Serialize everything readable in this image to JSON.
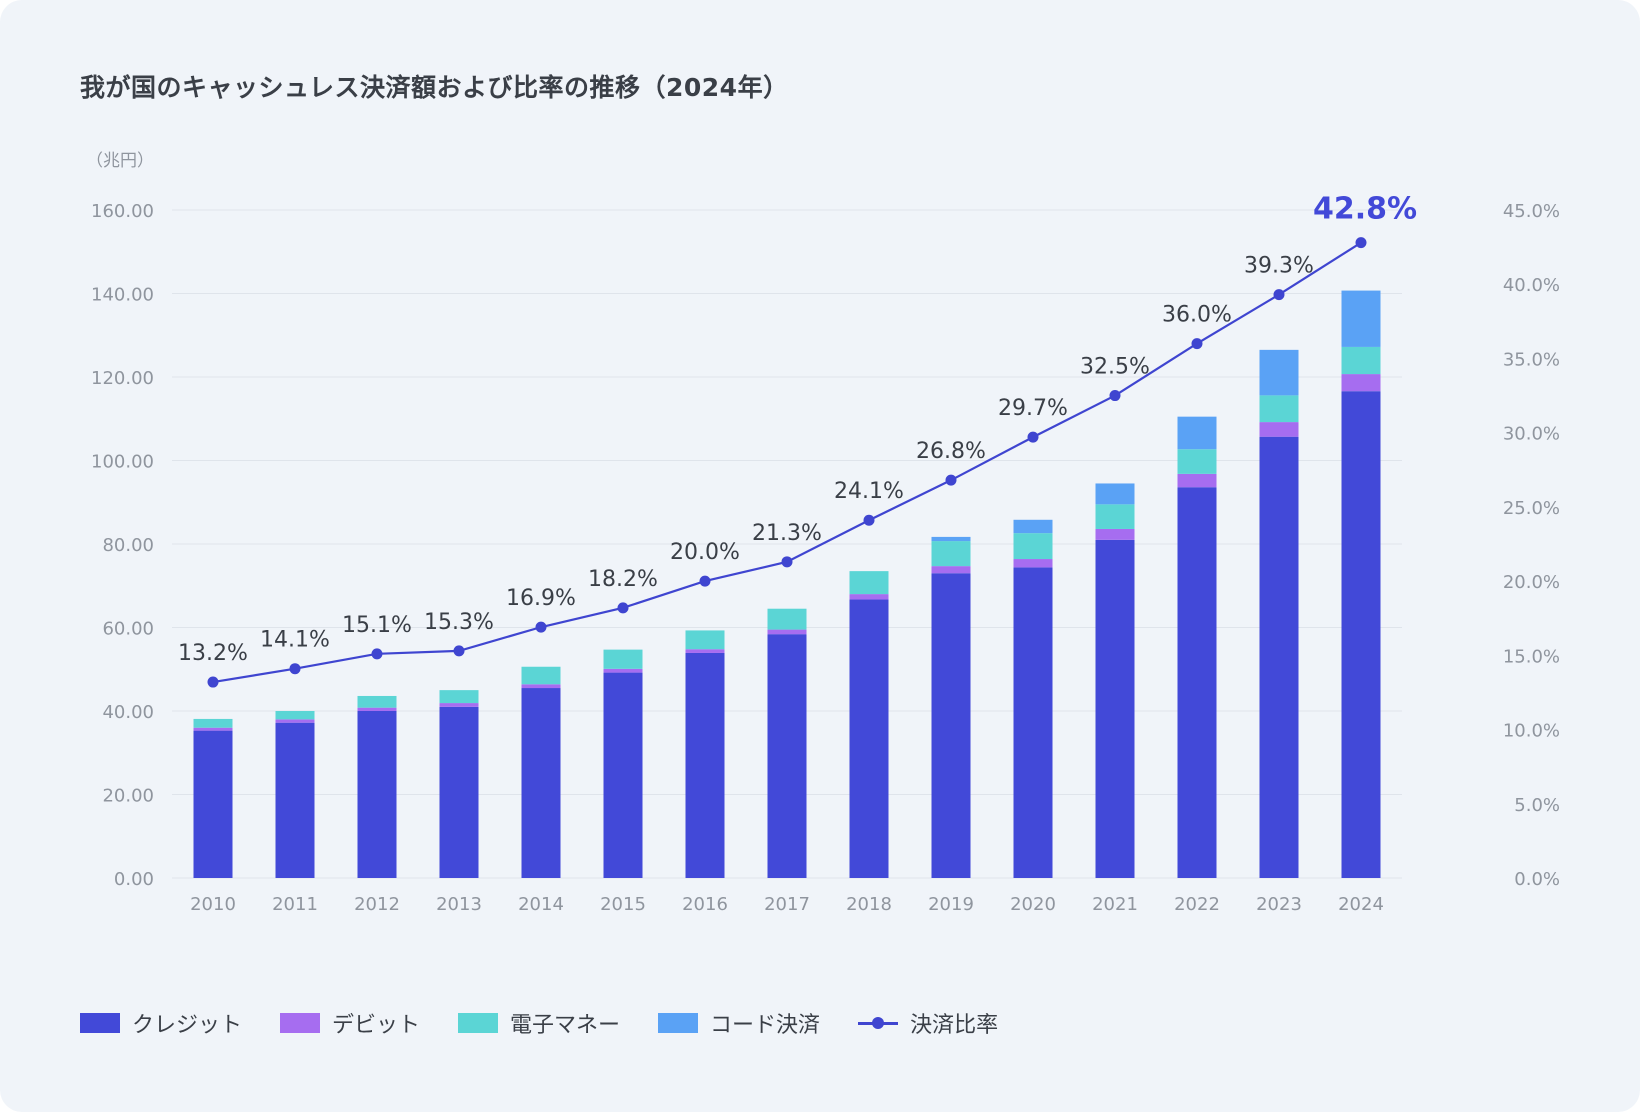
{
  "title": "我が国のキャッシュレス決済額および比率の推移（2024年）",
  "chart_data": {
    "type": "bar",
    "stacked": true,
    "title": "我が国のキャッシュレス決済額および比率の推移（2024年）",
    "y_unit_label": "（兆円）",
    "categories": [
      "2010",
      "2011",
      "2012",
      "2013",
      "2014",
      "2015",
      "2016",
      "2017",
      "2018",
      "2019",
      "2020",
      "2021",
      "2022",
      "2023",
      "2024"
    ],
    "ylim": [
      0,
      160
    ],
    "y_ticks": [
      "0.00",
      "20.00",
      "40.00",
      "60.00",
      "80.00",
      "100.00",
      "120.00",
      "140.00",
      "160.00"
    ],
    "y2lim": [
      0,
      45
    ],
    "y2_ticks": [
      "0.0%",
      "5.0%",
      "10.0%",
      "15.0%",
      "20.0%",
      "25.0%",
      "30.0%",
      "35.0%",
      "40.0%",
      "45.0%"
    ],
    "grid": true,
    "legend_position": "bottom-left",
    "series": [
      {
        "name": "クレジット",
        "color": "#4249d8",
        "values": [
          35.3,
          37.2,
          40.0,
          41.0,
          45.5,
          49.2,
          53.9,
          58.4,
          66.7,
          73.0,
          74.4,
          81.0,
          93.6,
          105.7,
          116.6
        ]
      },
      {
        "name": "デビット",
        "color": "#a66df0",
        "values": [
          0.7,
          0.8,
          0.8,
          0.9,
          0.9,
          0.9,
          0.9,
          1.1,
          1.3,
          1.7,
          2.0,
          2.6,
          3.2,
          3.5,
          4.1
        ]
      },
      {
        "name": "電子マネー",
        "color": "#5bd5d5",
        "values": [
          2.1,
          2.0,
          2.8,
          3.1,
          4.2,
          4.6,
          4.5,
          5.0,
          5.5,
          6.0,
          6.2,
          5.9,
          5.9,
          6.4,
          6.5
        ]
      },
      {
        "name": "コード決済",
        "color": "#5aa2f5",
        "values": [
          0,
          0,
          0,
          0,
          0,
          0,
          0,
          0,
          0.0,
          1.0,
          3.2,
          5.0,
          7.8,
          10.9,
          13.5
        ]
      }
    ],
    "ratio_series": {
      "name": "決済比率",
      "color": "#3f45d0",
      "values": [
        13.2,
        14.1,
        15.1,
        15.3,
        16.9,
        18.2,
        20.0,
        21.3,
        24.1,
        26.8,
        29.7,
        32.5,
        36.0,
        39.3,
        42.8
      ],
      "labels": [
        "13.2%",
        "14.1%",
        "15.1%",
        "15.3%",
        "16.9%",
        "18.2%",
        "20.0%",
        "21.3%",
        "24.1%",
        "26.8%",
        "29.7%",
        "32.5%",
        "36.0%",
        "39.3%",
        "42.8%"
      ],
      "highlight_last_color": "#4249d8"
    }
  },
  "legend": [
    {
      "label": "クレジット",
      "color": "#4249d8",
      "kind": "bar"
    },
    {
      "label": "デビット",
      "color": "#a66df0",
      "kind": "bar"
    },
    {
      "label": "電子マネー",
      "color": "#5bd5d5",
      "kind": "bar"
    },
    {
      "label": "コード決済",
      "color": "#5aa2f5",
      "kind": "bar"
    },
    {
      "label": "決済比率",
      "color": "#3f45d0",
      "kind": "line"
    }
  ]
}
